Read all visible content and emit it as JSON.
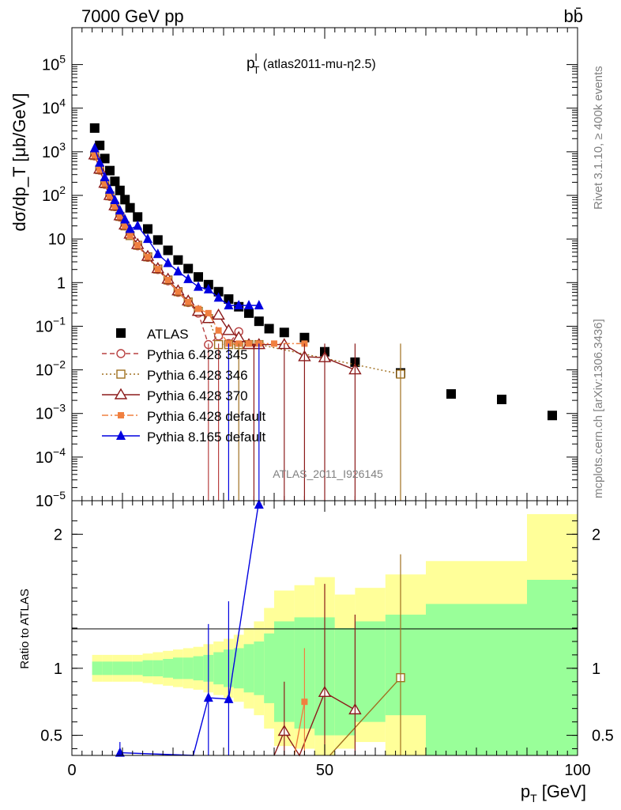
{
  "header": {
    "left": "7000 GeV pp",
    "right": "bb̄"
  },
  "side_texts": {
    "rivet": "Rivet 3.1.10, ≥ 400k events",
    "mcplots": "mcplots.cern.ch [arXiv:1306.3436]"
  },
  "chart_data": [
    {
      "type": "scatter",
      "panel": "main",
      "title_main": "p",
      "title_sup": "l",
      "title_sub": "T",
      "title_rest": " (atlas2011-mu-η2.5)",
      "ylabel": "dσ/dp_T [μb/GeV]",
      "ylog": true,
      "xlim": [
        0,
        100
      ],
      "ylim": [
        1e-05,
        700000
      ],
      "x_ticks": [
        0,
        50,
        100
      ],
      "y_ticks": [
        {
          "v": 100000,
          "label": "10^5"
        },
        {
          "v": 10000,
          "label": "10^4"
        },
        {
          "v": 1000,
          "label": "10^3"
        },
        {
          "v": 100,
          "label": "10^2"
        },
        {
          "v": 10,
          "label": "10"
        },
        {
          "v": 1,
          "label": "1"
        },
        {
          "v": 0.1,
          "label": "10^-1"
        },
        {
          "v": 0.01,
          "label": "10^-2"
        },
        {
          "v": 0.001,
          "label": "10^-3"
        },
        {
          "v": 0.0001,
          "label": "10^-4"
        },
        {
          "v": 1e-05,
          "label": "10^-5"
        }
      ],
      "watermark": "ATLAS_2011_I926145",
      "series": [
        {
          "name": "ATLAS",
          "color": "#000000",
          "marker": "square-filled",
          "x": [
            4.5,
            5.5,
            6.5,
            7.5,
            8.5,
            9.5,
            10.5,
            11.5,
            13,
            15,
            17,
            19,
            21,
            23,
            25,
            27,
            29,
            31,
            33,
            35,
            37,
            39,
            42,
            46,
            50,
            56,
            65,
            75,
            85,
            95
          ],
          "y": [
            3500,
            1400,
            700,
            370,
            210,
            130,
            80,
            52,
            32,
            17,
            9.5,
            5.5,
            3.3,
            2.1,
            1.35,
            0.9,
            0.62,
            0.42,
            0.28,
            0.2,
            0.13,
            0.088,
            0.072,
            0.055,
            0.026,
            0.015,
            0.0085,
            0.0028,
            0.0021,
            0.0009
          ]
        },
        {
          "name": "Pythia 6.428 345",
          "color": "#b84040",
          "marker": "circle-open",
          "line": "dashed",
          "x": [
            4.5,
            5.5,
            6.5,
            7.5,
            8.5,
            9.5,
            10.5,
            11.5,
            13,
            15,
            17,
            19,
            21,
            23,
            25,
            27,
            29,
            31,
            33
          ],
          "y": [
            800,
            380,
            180,
            95,
            55,
            32,
            20,
            12,
            7,
            3.8,
            2,
            1.1,
            0.6,
            0.35,
            0.2,
            0.038,
            0.06,
            0.04,
            0.075
          ]
        },
        {
          "name": "Pythia 6.428 346",
          "color": "#a07020",
          "marker": "square-open",
          "line": "dotted",
          "x": [
            4.5,
            5.5,
            6.5,
            7.5,
            8.5,
            9.5,
            10.5,
            11.5,
            13,
            15,
            17,
            19,
            21,
            23,
            25,
            27,
            29,
            31,
            33,
            35,
            37,
            65
          ],
          "y": [
            820,
            390,
            185,
            98,
            56,
            33,
            20,
            12,
            7.2,
            3.9,
            2.05,
            1.15,
            0.62,
            0.36,
            0.22,
            0.15,
            0.038,
            0.038,
            0.038,
            0.038,
            0.038,
            0.008
          ]
        },
        {
          "name": "Pythia 6.428 370",
          "color": "#8b1a1a",
          "marker": "triangle-open",
          "line": "solid",
          "x": [
            4.5,
            5.5,
            6.5,
            7.5,
            8.5,
            9.5,
            10.5,
            11.5,
            13,
            15,
            17,
            19,
            21,
            23,
            25,
            27,
            29,
            31,
            33,
            35,
            37,
            42,
            46,
            50,
            56
          ],
          "y": [
            850,
            400,
            190,
            100,
            58,
            34,
            21,
            13,
            7.5,
            4,
            2.1,
            1.2,
            0.65,
            0.38,
            0.22,
            0.15,
            0.18,
            0.08,
            0.055,
            0.038,
            0.038,
            0.038,
            0.02,
            0.019,
            0.01
          ]
        },
        {
          "name": "Pythia 6.428 default",
          "color": "#f08040",
          "marker": "square-filled-small",
          "line": "dashdot",
          "x": [
            4.5,
            5.5,
            6.5,
            7.5,
            8.5,
            9.5,
            10.5,
            11.5,
            13,
            15,
            17,
            19,
            21,
            23,
            25,
            27,
            29,
            31,
            33,
            35,
            37,
            40,
            46
          ],
          "y": [
            830,
            390,
            185,
            97,
            56,
            33,
            20,
            12,
            7.2,
            3.9,
            2.05,
            1.15,
            0.62,
            0.36,
            0.25,
            0.2,
            0.08,
            0.04,
            0.04,
            0.04,
            0.04,
            0.04,
            0.04
          ]
        },
        {
          "name": "Pythia 8.165 default",
          "color": "#0000e0",
          "marker": "triangle-filled",
          "line": "solid",
          "x": [
            4.5,
            5.5,
            6.5,
            7.5,
            8.5,
            9.5,
            10.5,
            11.5,
            13,
            15,
            17,
            19,
            21,
            23,
            25,
            27,
            29,
            31,
            33,
            35,
            37
          ],
          "y": [
            1200,
            560,
            260,
            135,
            78,
            45,
            28,
            17,
            20,
            10,
            4.5,
            2.8,
            1.8,
            1.2,
            0.8,
            0.7,
            0.45,
            0.3,
            0.3,
            0.3,
            0.3
          ]
        }
      ],
      "legend": [
        "ATLAS",
        "Pythia 6.428 345",
        "Pythia 6.428 346",
        "Pythia 6.428 370",
        "Pythia 6.428 default",
        "Pythia 8.165 default"
      ]
    },
    {
      "type": "line",
      "panel": "ratio",
      "ylabel": "Ratio to ATLAS",
      "xlabel_main": "p",
      "xlabel_sub": "T",
      "xlabel_rest": " [GeV]",
      "xlim": [
        0,
        100
      ],
      "ylim": [
        0.35,
        2.25
      ],
      "x_ticks": [
        0,
        50,
        100
      ],
      "y_ticks": [
        0.5,
        1,
        2
      ],
      "reference": 1,
      "bands": {
        "edges": [
          4,
          6,
          8,
          10,
          12,
          14,
          16,
          18,
          20,
          22,
          24,
          26,
          28,
          30,
          32,
          34,
          36,
          38,
          40,
          44,
          48,
          52,
          56,
          62,
          70,
          90,
          100
        ],
        "green_lo": [
          0.95,
          0.95,
          0.95,
          0.95,
          0.95,
          0.94,
          0.94,
          0.93,
          0.92,
          0.92,
          0.91,
          0.9,
          0.88,
          0.86,
          0.85,
          0.82,
          0.8,
          0.74,
          0.6,
          0.55,
          0.5,
          0.5,
          0.6,
          0.65,
          0.35,
          0.35
        ],
        "green_hi": [
          1.05,
          1.05,
          1.05,
          1.05,
          1.05,
          1.06,
          1.06,
          1.07,
          1.08,
          1.08,
          1.09,
          1.1,
          1.12,
          1.14,
          1.15,
          1.18,
          1.2,
          1.26,
          1.35,
          1.38,
          1.38,
          1.3,
          1.35,
          1.4,
          1.48,
          1.66
        ],
        "yellow_lo": [
          0.9,
          0.9,
          0.9,
          0.9,
          0.9,
          0.89,
          0.88,
          0.87,
          0.86,
          0.85,
          0.84,
          0.82,
          0.8,
          0.78,
          0.75,
          0.7,
          0.65,
          0.55,
          0.42,
          0.4,
          0.35,
          0.4,
          0.45,
          0.35,
          0.35,
          0.35
        ],
        "yellow_hi": [
          1.1,
          1.1,
          1.1,
          1.1,
          1.1,
          1.11,
          1.12,
          1.13,
          1.14,
          1.15,
          1.16,
          1.18,
          1.2,
          1.22,
          1.25,
          1.3,
          1.35,
          1.45,
          1.58,
          1.62,
          1.68,
          1.55,
          1.6,
          1.7,
          1.8,
          2.15
        ]
      },
      "series": [
        {
          "name": "Pythia 8.165 default",
          "color": "#0000e0",
          "x": [
            9.5,
            24,
            27,
            31,
            37
          ],
          "y": [
            0.37,
            0.3,
            0.78,
            0.77,
            2.25
          ]
        },
        {
          "name": "Pythia 6.428 370",
          "color": "#8b1a1a",
          "x": [
            40,
            42,
            45,
            50,
            56
          ],
          "y": [
            0.3,
            0.53,
            0.3,
            0.82,
            0.69
          ]
        },
        {
          "name": "Pythia 6.428 default",
          "color": "#f08040",
          "x": [
            44,
            46
          ],
          "y": [
            0.3,
            0.75
          ]
        },
        {
          "name": "Pythia 6.428 346",
          "color": "#a07020",
          "x": [
            51,
            65
          ],
          "y": [
            0.3,
            0.93
          ]
        }
      ]
    }
  ]
}
